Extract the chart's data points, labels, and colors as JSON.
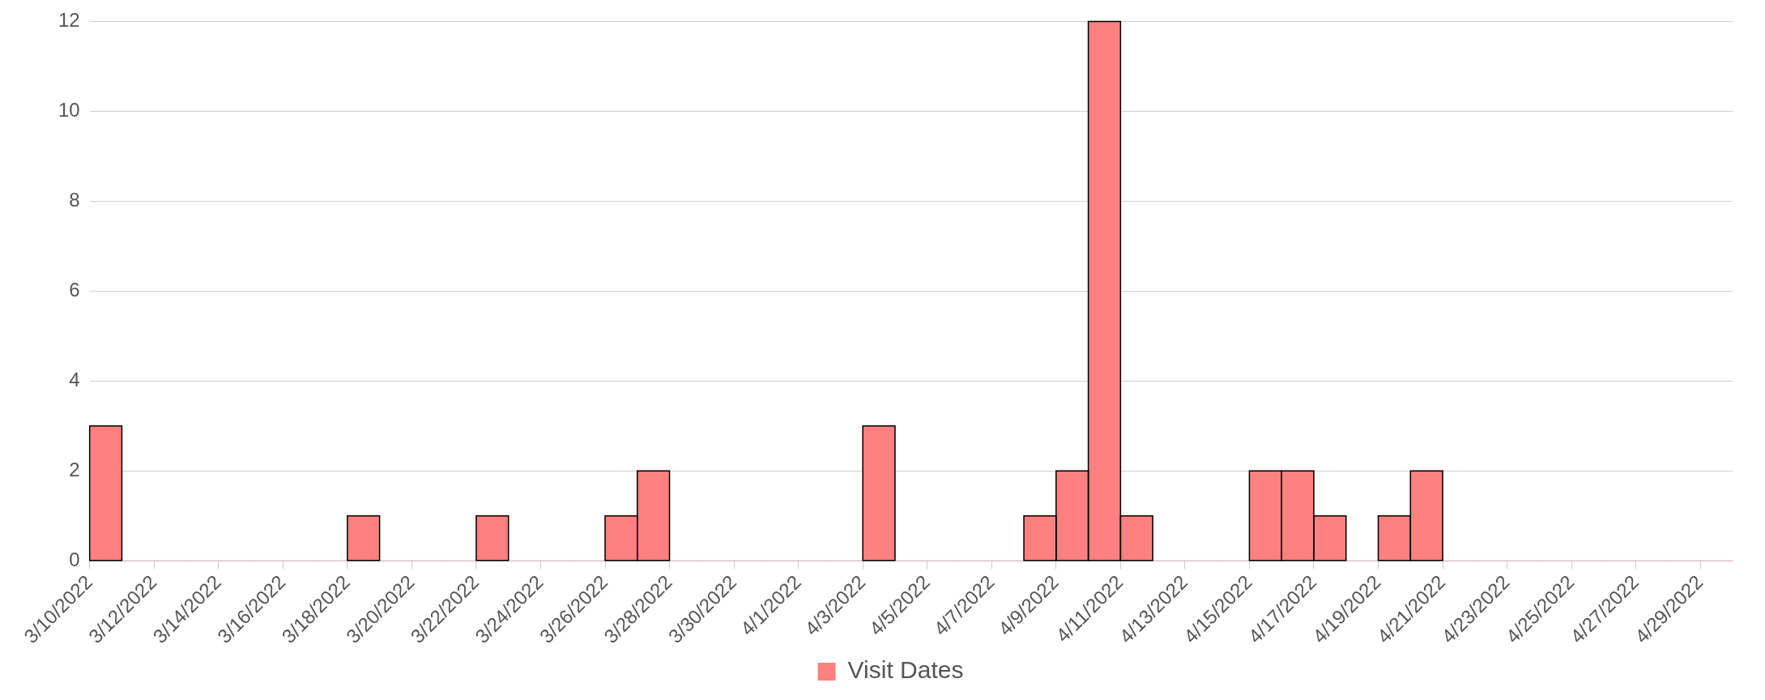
{
  "chart_data": {
    "type": "histogram",
    "bins": [
      "2022-03-10",
      "2022-03-11",
      "2022-03-12",
      "2022-03-13",
      "2022-03-14",
      "2022-03-15",
      "2022-03-16",
      "2022-03-17",
      "2022-03-18",
      "2022-03-19",
      "2022-03-20",
      "2022-03-21",
      "2022-03-22",
      "2022-03-23",
      "2022-03-24",
      "2022-03-25",
      "2022-03-26",
      "2022-03-27",
      "2022-03-28",
      "2022-03-29",
      "2022-03-30",
      "2022-03-31",
      "2022-04-01",
      "2022-04-02",
      "2022-04-03",
      "2022-04-04",
      "2022-04-05",
      "2022-04-06",
      "2022-04-07",
      "2022-04-08",
      "2022-04-09",
      "2022-04-10",
      "2022-04-11",
      "2022-04-12",
      "2022-04-13",
      "2022-04-14",
      "2022-04-15",
      "2022-04-16",
      "2022-04-17",
      "2022-04-18",
      "2022-04-19",
      "2022-04-20",
      "2022-04-21",
      "2022-04-22",
      "2022-04-23",
      "2022-04-24",
      "2022-04-25",
      "2022-04-26",
      "2022-04-27",
      "2022-04-28",
      "2022-04-29",
      "2022-04-30"
    ],
    "series": [
      {
        "name": "Visit Dates",
        "color": "#ff8080",
        "values": [
          3,
          0,
          0,
          0,
          0,
          0,
          0,
          0,
          1,
          0,
          0,
          0,
          1,
          0,
          0,
          0,
          1,
          2,
          0,
          0,
          0,
          0,
          0,
          0,
          3,
          0,
          0,
          0,
          0,
          1,
          2,
          12,
          1,
          0,
          0,
          0,
          2,
          2,
          1,
          0,
          1,
          2,
          0,
          0,
          0,
          0,
          0,
          0,
          0,
          0,
          0
        ]
      }
    ],
    "xlim": [
      "2022-03-10",
      "2022-04-30"
    ],
    "xticks": [
      {
        "value": "2022-03-10",
        "label": "3/10/2022"
      },
      {
        "value": "2022-03-12",
        "label": "3/12/2022"
      },
      {
        "value": "2022-03-14",
        "label": "3/14/2022"
      },
      {
        "value": "2022-03-16",
        "label": "3/16/2022"
      },
      {
        "value": "2022-03-18",
        "label": "3/18/2022"
      },
      {
        "value": "2022-03-20",
        "label": "3/20/2022"
      },
      {
        "value": "2022-03-22",
        "label": "3/22/2022"
      },
      {
        "value": "2022-03-24",
        "label": "3/24/2022"
      },
      {
        "value": "2022-03-26",
        "label": "3/26/2022"
      },
      {
        "value": "2022-03-28",
        "label": "3/28/2022"
      },
      {
        "value": "2022-03-30",
        "label": "3/30/2022"
      },
      {
        "value": "2022-04-01",
        "label": "4/1/2022"
      },
      {
        "value": "2022-04-03",
        "label": "4/3/2022"
      },
      {
        "value": "2022-04-05",
        "label": "4/5/2022"
      },
      {
        "value": "2022-04-07",
        "label": "4/7/2022"
      },
      {
        "value": "2022-04-09",
        "label": "4/9/2022"
      },
      {
        "value": "2022-04-11",
        "label": "4/11/2022"
      },
      {
        "value": "2022-04-13",
        "label": "4/13/2022"
      },
      {
        "value": "2022-04-15",
        "label": "4/15/2022"
      },
      {
        "value": "2022-04-17",
        "label": "4/17/2022"
      },
      {
        "value": "2022-04-19",
        "label": "4/19/2022"
      },
      {
        "value": "2022-04-21",
        "label": "4/21/2022"
      },
      {
        "value": "2022-04-23",
        "label": "4/23/2022"
      },
      {
        "value": "2022-04-25",
        "label": "4/25/2022"
      },
      {
        "value": "2022-04-27",
        "label": "4/27/2022"
      },
      {
        "value": "2022-04-29",
        "label": "4/29/2022"
      }
    ],
    "ylim": [
      0,
      12
    ],
    "yticks": [
      0,
      2,
      4,
      6,
      8,
      10,
      12
    ],
    "grid": "y",
    "legend": "bottom"
  }
}
